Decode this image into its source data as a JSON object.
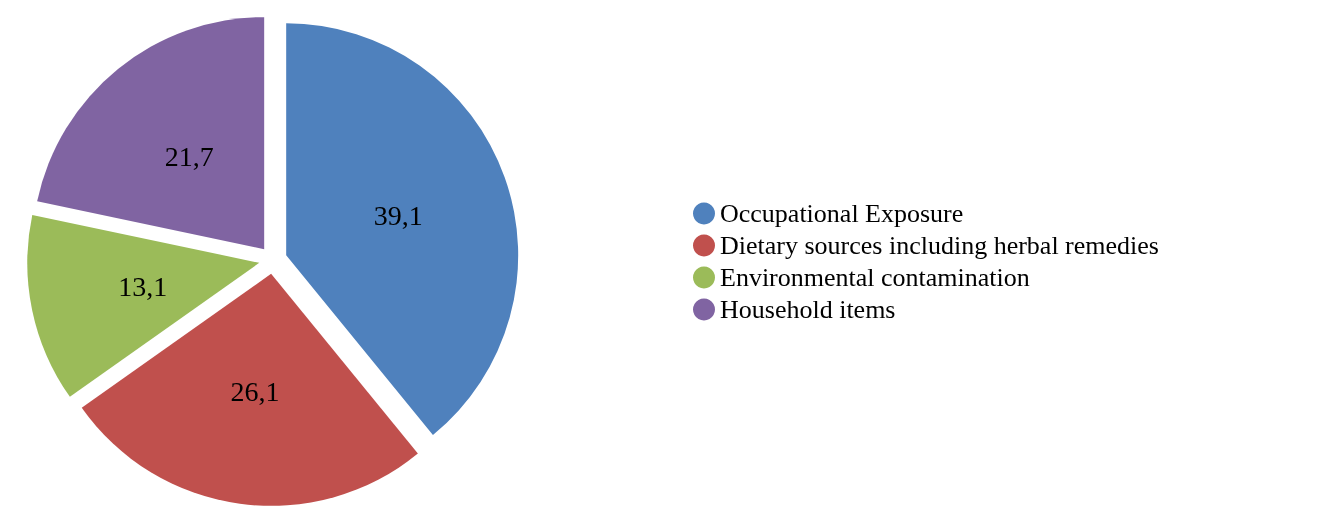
{
  "chart_data": {
    "type": "pie",
    "categories": [
      "Occupational Exposure",
      "Dietary sources including herbal remedies",
      "Environmental contamination",
      "Household items"
    ],
    "values": [
      39.1,
      26.1,
      13.1,
      21.7
    ],
    "value_labels": [
      "39,1",
      "26,1",
      "13,1",
      "21,7"
    ],
    "colors": [
      "#4f81bd",
      "#c0504d",
      "#9bbb59",
      "#8064a2"
    ],
    "legend": "right"
  }
}
